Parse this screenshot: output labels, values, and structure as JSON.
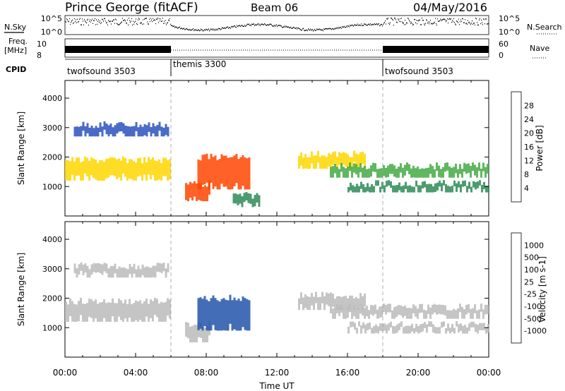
{
  "header": {
    "station": "Prince George (fitACF)",
    "beam": "Beam 06",
    "date": "04/May/2016"
  },
  "sky_panel": {
    "left_label": "N.Sky",
    "right_label": "N.Search",
    "left_ticks": [
      "10^5",
      "10^0"
    ],
    "right_ticks": [
      "10^5",
      "10^0"
    ]
  },
  "freq_panel": {
    "left_label_1": "Freq.",
    "left_label_2": "[MHz]",
    "left_ticks": [
      "10",
      "8"
    ],
    "right_label": "Nave",
    "right_ticks": [
      "60",
      "0"
    ]
  },
  "cpid": {
    "label": "CPID",
    "segments": [
      {
        "name": "twofsound 3503",
        "start": 0,
        "end": 6
      },
      {
        "name": "themis 3300",
        "start": 6,
        "end": 18
      },
      {
        "name": "twofsound 3503",
        "start": 18,
        "end": 24
      }
    ]
  },
  "colors": {
    "power": [
      "#0000ff",
      "#2a52be",
      "#2e8b57",
      "#44aa44",
      "#ffd700",
      "#ff8c00",
      "#ff4500",
      "#ff0000"
    ],
    "velocity": [
      "#0000cc",
      "#2255aa",
      "#2e8b57",
      "#66cc33",
      "#bbbbbb",
      "#ffcc00",
      "#ff8c00",
      "#ff4500",
      "#ff0000"
    ]
  },
  "chart_data": [
    {
      "type": "heatmap",
      "title": "",
      "xlabel": "",
      "ylabel": "Slant Range [km]",
      "xlim": [
        0,
        24
      ],
      "ylim": [
        0,
        4600
      ],
      "yticks": [
        1000,
        2000,
        3000,
        4000
      ],
      "colorbar_label": "Power [dB]",
      "colorbar_ticks": [
        "28",
        "24",
        "20",
        "16",
        "12",
        "8",
        "4"
      ],
      "regions": [
        {
          "t0": 0.0,
          "t1": 6.0,
          "r0": 1200,
          "r1": 1900,
          "power": 18
        },
        {
          "t0": 0.5,
          "t1": 5.8,
          "r0": 2700,
          "r1": 3100,
          "power": 8
        },
        {
          "t0": 6.8,
          "t1": 8.2,
          "r0": 500,
          "r1": 1100,
          "power": 26
        },
        {
          "t0": 7.5,
          "t1": 10.5,
          "r0": 900,
          "r1": 2000,
          "power": 24
        },
        {
          "t0": 9.5,
          "t1": 11.0,
          "r0": 300,
          "r1": 700,
          "power": 10
        },
        {
          "t0": 13.2,
          "t1": 17.0,
          "r0": 1600,
          "r1": 2100,
          "power": 16
        },
        {
          "t0": 15.0,
          "t1": 24.0,
          "r0": 1300,
          "r1": 1700,
          "power": 14
        },
        {
          "t0": 16.0,
          "t1": 24.0,
          "r0": 800,
          "r1": 1100,
          "power": 12
        }
      ]
    },
    {
      "type": "heatmap",
      "title": "",
      "xlabel": "Time UT",
      "ylabel": "Slant Range [km]",
      "xlim": [
        0,
        24
      ],
      "ylim": [
        0,
        4600
      ],
      "yticks": [
        1000,
        2000,
        3000,
        4000
      ],
      "xtick_labels": [
        "00:00",
        "04:00",
        "08:00",
        "12:00",
        "16:00",
        "20:00",
        "00:00"
      ],
      "colorbar_label": "Velocity [m s-1]",
      "colorbar_ticks": [
        "1000",
        "500",
        "100",
        "25",
        "-25",
        "-100",
        "-500",
        "-1000"
      ],
      "regions": [
        {
          "t0": 0.0,
          "t1": 6.0,
          "r0": 1200,
          "r1": 1900,
          "velocity": 0
        },
        {
          "t0": 0.5,
          "t1": 5.8,
          "r0": 2700,
          "r1": 3100,
          "velocity": 0
        },
        {
          "t0": 6.8,
          "t1": 8.2,
          "r0": 500,
          "r1": 1100,
          "velocity": 0
        },
        {
          "t0": 7.5,
          "t1": 10.5,
          "r0": 900,
          "r1": 2000,
          "velocity": 150
        },
        {
          "t0": 13.2,
          "t1": 17.0,
          "r0": 1600,
          "r1": 2100,
          "velocity": 0
        },
        {
          "t0": 15.0,
          "t1": 24.0,
          "r0": 1300,
          "r1": 1700,
          "velocity": 0
        },
        {
          "t0": 16.0,
          "t1": 24.0,
          "r0": 800,
          "r1": 1100,
          "velocity": 0
        }
      ]
    }
  ]
}
